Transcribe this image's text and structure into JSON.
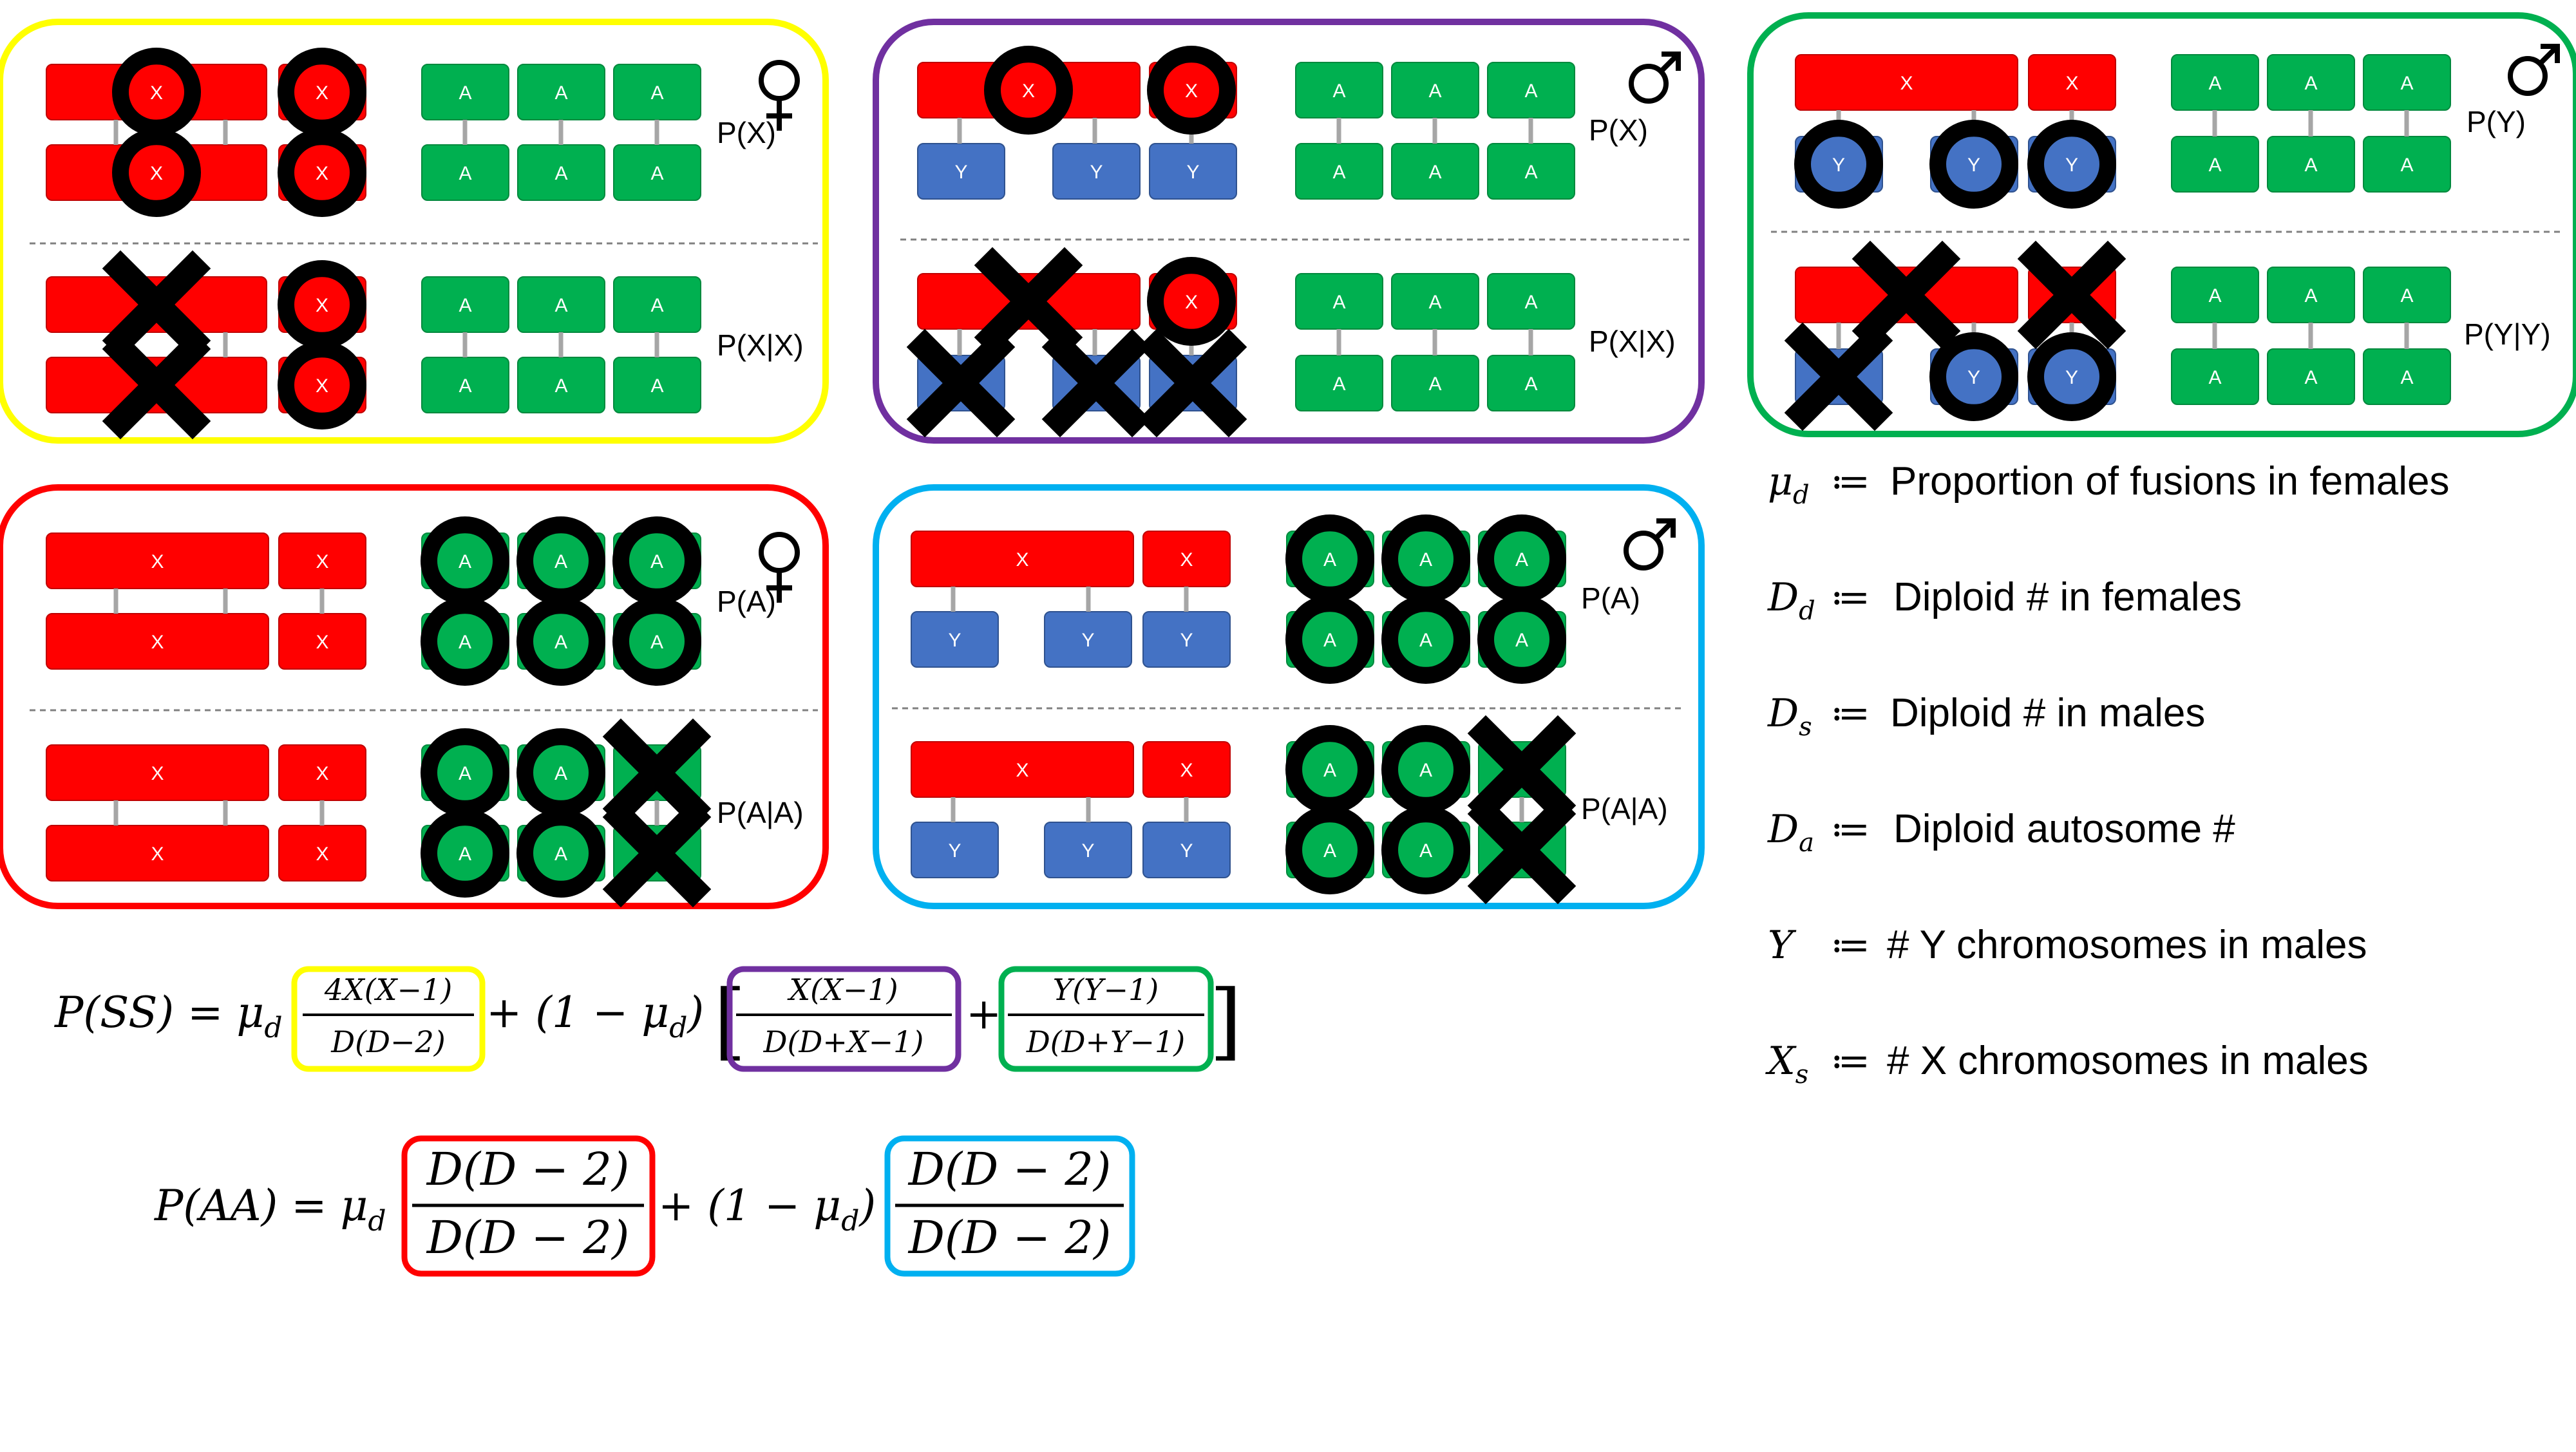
{
  "chrom_letters": {
    "x": "X",
    "y": "Y",
    "a": "A"
  },
  "colors": {
    "x_chromosome": "#ff0000",
    "y_chromosome": "#4472c4",
    "autosome": "#00b050",
    "fused_ring": "#000000",
    "panel_sex_female": "#ffff00",
    "panel_sex_male_x": "#7030a0",
    "panel_sex_male_y": "#00b050",
    "panel_auto_female": "#ff0000",
    "panel_auto_male": "#00b0f0"
  },
  "symbols": {
    "female": "female-sign",
    "male": "male-sign",
    "lost": "x-mark"
  },
  "panels": {
    "female_x": {
      "top_label": "P(X)",
      "bottom_label": "P(X|X)",
      "sex": "female"
    },
    "male_x": {
      "top_label": "P(X)",
      "bottom_label": "P(X|X)",
      "sex": "male"
    },
    "male_y": {
      "top_label": "P(Y)",
      "bottom_label": "P(Y|Y)",
      "sex": "male"
    },
    "female_a": {
      "top_label": "P(A)",
      "bottom_label": "P(A|A)",
      "sex": "female"
    },
    "male_a": {
      "top_label": "P(A)",
      "bottom_label": "P(A|A)",
      "sex": "male"
    }
  },
  "definitions": [
    {
      "symbol": "μ",
      "sub": "d",
      "assign": "≔",
      "text": "Proportion of fusions in females"
    },
    {
      "symbol": "D",
      "sub": "d",
      "assign": "≔",
      "text": "Diploid # in females"
    },
    {
      "symbol": "D",
      "sub": "s",
      "assign": "≔",
      "text": "Diploid # in males"
    },
    {
      "symbol": "D",
      "sub": "a",
      "assign": "≔",
      "text": "Diploid autosome #"
    },
    {
      "symbol": "Y",
      "sub": "",
      "assign": "≔",
      "text": "# Y chromosomes in males"
    },
    {
      "symbol": "X",
      "sub": "s",
      "assign": "≔",
      "text": "# X chromosomes in males"
    }
  ],
  "equations": {
    "ss": {
      "lhs": "P(SS) = μ",
      "mu_sub": "d",
      "one_minus": "+ (1 − μ",
      "one_minus_close": ")",
      "plus": "+",
      "frac1_num": "4X(X−1)",
      "frac1_den": "D(D−2)",
      "frac2_num": "X(X−1)",
      "frac2_den": "D(D+X−1)",
      "frac3_num": "Y(Y−1)",
      "frac3_den": "D(D+Y−1)"
    },
    "aa": {
      "lhs": "P(AA) = μ",
      "mu_sub": "d",
      "one_minus": "+ (1 − μ",
      "one_minus_close": ")",
      "frac1_num": "D(D − 2)",
      "frac1_den": "D(D − 2)",
      "frac2_num": "D(D − 2)",
      "frac2_den": "D(D − 2)"
    }
  }
}
